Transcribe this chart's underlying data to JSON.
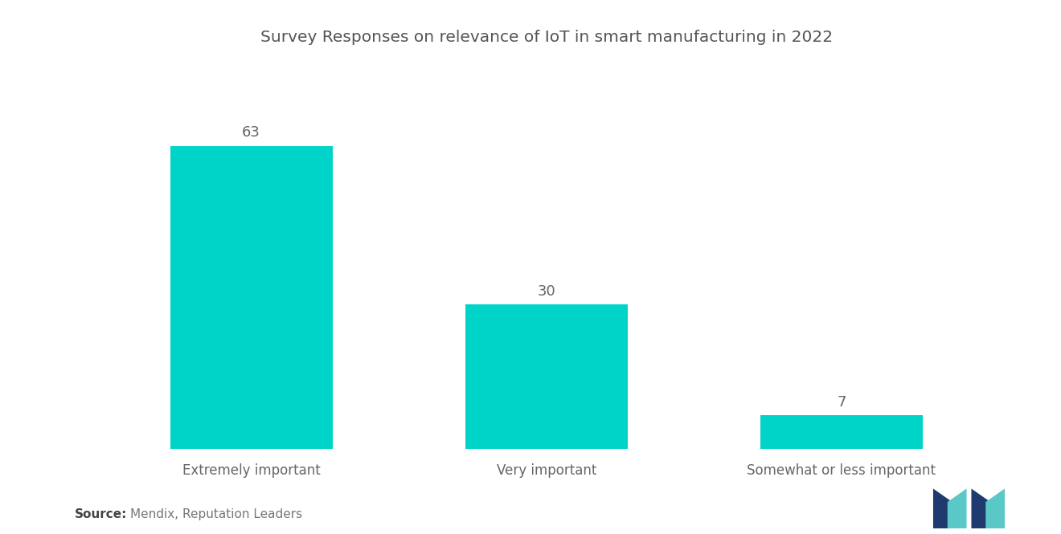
{
  "title": "Survey Responses on relevance of IoT in smart manufacturing in 2022",
  "categories": [
    "Extremely important",
    "Very important",
    "Somewhat or less important"
  ],
  "values": [
    63,
    30,
    7
  ],
  "bar_color": "#00D4C8",
  "value_color": "#666666",
  "title_color": "#555555",
  "label_color": "#666666",
  "source_label": "Source:",
  "source_text": "  Mendix, Reputation Leaders",
  "background_color": "#ffffff",
  "title_fontsize": 14.5,
  "label_fontsize": 12,
  "value_fontsize": 13,
  "source_fontsize": 11,
  "ylim": [
    0,
    80
  ],
  "bar_width": 0.55
}
